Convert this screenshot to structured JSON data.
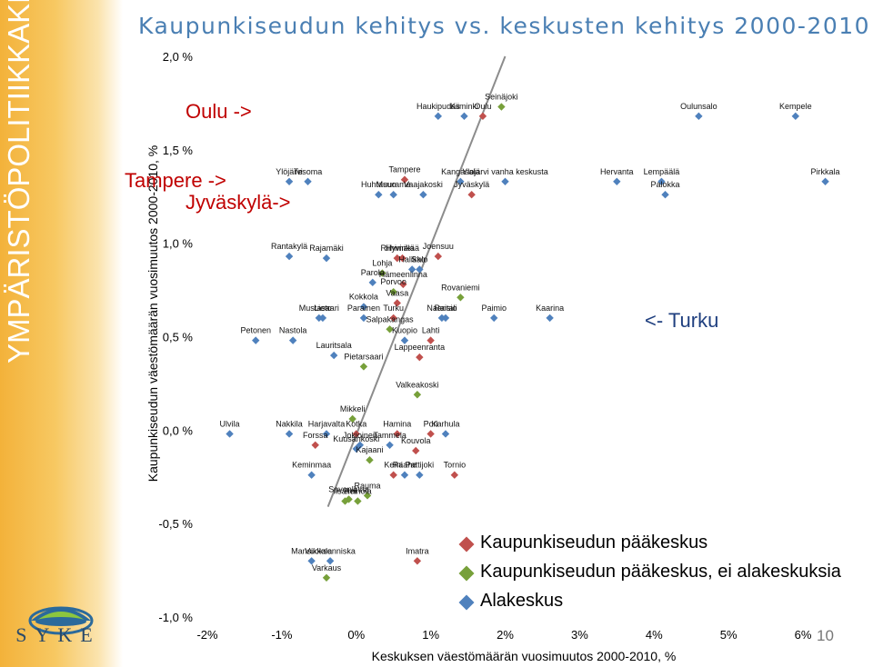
{
  "sidebar": {
    "vertical_title": "YMPÄRISTÖPOLITIIKKAKESKUS",
    "logo_text": "SYKE"
  },
  "header": {
    "title": "Kaupunkiseudun kehitys vs. keskusten kehitys 2000-2010"
  },
  "annotations": {
    "oulu": "Oulu ->",
    "tampere": "Tampere ->",
    "jyvaskyla": "Jyväskylä->",
    "turku": "<- Turku"
  },
  "page_number": "10",
  "colors": {
    "red": "#c0504d",
    "green": "#77a03a",
    "blue": "#4f81bd",
    "trend": "#8c8c8c",
    "annotation_red": "#c00000",
    "annotation_blue": "#1f3f7f"
  },
  "legend": [
    {
      "name": "Kaupunkiseudun pääkeskus",
      "color": "#c0504d"
    },
    {
      "name": "Kaupunkiseudun pääkeskus, ei alakeskuksia",
      "color": "#77a03a"
    },
    {
      "name": "Alakeskus",
      "color": "#4f81bd"
    }
  ],
  "chart_data": {
    "type": "scatter",
    "title": "",
    "xlabel": "Keskuksen väestömäärän vuosimuutos 2000-2010, %",
    "ylabel": "Kaupunkiseudun väestömäärän vuosimuutos 2000-2010, %",
    "xlim": [
      -2,
      6
    ],
    "ylim": [
      -1,
      2
    ],
    "x_ticks": [
      "-2%",
      "-1%",
      "0%",
      "1%",
      "2%",
      "3%",
      "4%",
      "5%",
      "6%"
    ],
    "y_ticks": [
      "-1,0 %",
      "-0,5 %",
      "0,0 %",
      "0,5 %",
      "1,0 %",
      "1,5 %",
      "2,0 %"
    ],
    "grid": false,
    "legend_position": "bottom-right",
    "trendline": {
      "x": [
        -0.38,
        2.0
      ],
      "y": [
        -0.41,
        2.0
      ]
    },
    "series": [
      {
        "name": "Kaupunkiseudun pääkeskus",
        "points": [
          {
            "label": "Oulu",
            "x": 1.7,
            "y": 1.68
          },
          {
            "label": "Tampere",
            "x": 0.65,
            "y": 1.34
          },
          {
            "label": "Jyväskylä",
            "x": 1.55,
            "y": 1.26
          },
          {
            "label": "Riihimäki",
            "x": 0.55,
            "y": 0.92
          },
          {
            "label": "Hyvinkää",
            "x": 0.62,
            "y": 0.92
          },
          {
            "label": "Joensuu",
            "x": 1.1,
            "y": 0.93
          },
          {
            "label": "Hämeenlinna",
            "x": 0.63,
            "y": 0.78
          },
          {
            "label": "Vaasa",
            "x": 0.55,
            "y": 0.68
          },
          {
            "label": "Turku",
            "x": 0.5,
            "y": 0.6
          },
          {
            "label": "Lahti",
            "x": 1.0,
            "y": 0.48
          },
          {
            "label": "Lappeenranta",
            "x": 0.85,
            "y": 0.39
          },
          {
            "label": "Kotka",
            "x": 0.0,
            "y": -0.02
          },
          {
            "label": "Hamina",
            "x": 0.55,
            "y": -0.02
          },
          {
            "label": "Pori",
            "x": 1.0,
            "y": -0.02
          },
          {
            "label": "Forssa",
            "x": -0.55,
            "y": -0.08
          },
          {
            "label": "Kouvola",
            "x": 0.8,
            "y": -0.11
          },
          {
            "label": "Kemi",
            "x": 0.5,
            "y": -0.24
          },
          {
            "label": "Tornio",
            "x": 1.32,
            "y": -0.24
          },
          {
            "label": "Imatra",
            "x": 0.82,
            "y": -0.7
          }
        ]
      },
      {
        "name": "Kaupunkiseudun pääkeskus, ei alakeskuksia",
        "points": [
          {
            "label": "Seinäjoki",
            "x": 1.95,
            "y": 1.73
          },
          {
            "label": "Lohja",
            "x": 0.35,
            "y": 0.84
          },
          {
            "label": "Porvoo",
            "x": 0.5,
            "y": 0.74
          },
          {
            "label": "Rovaniemi",
            "x": 1.4,
            "y": 0.71
          },
          {
            "label": "Salpakangas",
            "x": 0.45,
            "y": 0.54
          },
          {
            "label": "Pietarsaari",
            "x": 0.1,
            "y": 0.34
          },
          {
            "label": "Valkeakoski",
            "x": 0.82,
            "y": 0.19
          },
          {
            "label": "Mikkeli",
            "x": -0.05,
            "y": 0.06
          },
          {
            "label": "Kajaani",
            "x": 0.18,
            "y": -0.16
          },
          {
            "label": "Savonlinna",
            "x": -0.1,
            "y": -0.37
          },
          {
            "label": "Rauma",
            "x": 0.15,
            "y": -0.35
          },
          {
            "label": "Iisalmi",
            "x": -0.15,
            "y": -0.38
          },
          {
            "label": "Heinola",
            "x": 0.02,
            "y": -0.38
          },
          {
            "label": "Varkaus",
            "x": -0.4,
            "y": -0.79
          }
        ]
      },
      {
        "name": "Alakeskus",
        "points": [
          {
            "label": "Haukipudas",
            "x": 1.1,
            "y": 1.68
          },
          {
            "label": "Kiiminki",
            "x": 1.45,
            "y": 1.68
          },
          {
            "label": "Oulunsalo",
            "x": 4.6,
            "y": 1.68
          },
          {
            "label": "Kempele",
            "x": 5.9,
            "y": 1.68
          },
          {
            "label": "Ylöjärvi",
            "x": -0.9,
            "y": 1.33
          },
          {
            "label": "Tesoma",
            "x": -0.65,
            "y": 1.33
          },
          {
            "label": "Kangasala",
            "x": 1.4,
            "y": 1.33
          },
          {
            "label": "Ylojärvi vanha keskusta",
            "x": 2.0,
            "y": 1.33
          },
          {
            "label": "Hervanta",
            "x": 3.5,
            "y": 1.33
          },
          {
            "label": "Lempäälä",
            "x": 4.1,
            "y": 1.33
          },
          {
            "label": "Pirkkala",
            "x": 6.3,
            "y": 1.33
          },
          {
            "label": "Huhtasuo",
            "x": 0.3,
            "y": 1.26
          },
          {
            "label": "Muurame",
            "x": 0.5,
            "y": 1.26
          },
          {
            "label": "Vaajakoski",
            "x": 0.9,
            "y": 1.26
          },
          {
            "label": "Palokka",
            "x": 4.15,
            "y": 1.26
          },
          {
            "label": "Rantakylä",
            "x": -0.9,
            "y": 0.93
          },
          {
            "label": "Rajamäki",
            "x": -0.4,
            "y": 0.92
          },
          {
            "label": "Halikko",
            "x": 0.75,
            "y": 0.86
          },
          {
            "label": "Salo",
            "x": 0.85,
            "y": 0.86
          },
          {
            "label": "Parola",
            "x": 0.22,
            "y": 0.79
          },
          {
            "label": "Kokkola",
            "x": 0.1,
            "y": 0.66
          },
          {
            "label": "Mustasaari",
            "x": -0.5,
            "y": 0.6
          },
          {
            "label": "Lieto",
            "x": -0.45,
            "y": 0.6
          },
          {
            "label": "Parainen",
            "x": 0.1,
            "y": 0.6
          },
          {
            "label": "Naantali",
            "x": 1.15,
            "y": 0.6
          },
          {
            "label": "Raisio",
            "x": 1.2,
            "y": 0.6
          },
          {
            "label": "Paimio",
            "x": 1.85,
            "y": 0.6
          },
          {
            "label": "Kaarina",
            "x": 2.6,
            "y": 0.6
          },
          {
            "label": "Nastola",
            "x": -0.85,
            "y": 0.48
          },
          {
            "label": "Petonen",
            "x": -1.35,
            "y": 0.48
          },
          {
            "label": "Kuopio",
            "x": 0.65,
            "y": 0.48
          },
          {
            "label": "Lauritsala",
            "x": -0.3,
            "y": 0.4
          },
          {
            "label": "Ulvila",
            "x": -1.7,
            "y": -0.02
          },
          {
            "label": "Nakkila",
            "x": -0.9,
            "y": -0.02
          },
          {
            "label": "Harjavalta",
            "x": -0.4,
            "y": -0.02
          },
          {
            "label": "Karhula",
            "x": 1.2,
            "y": -0.02
          },
          {
            "label": "Jokioinen",
            "x": 0.05,
            "y": -0.08
          },
          {
            "label": "Tammela",
            "x": 0.45,
            "y": -0.08
          },
          {
            "label": "Kuusankoski",
            "x": 0.0,
            "y": -0.1
          },
          {
            "label": "Keminmaa",
            "x": -0.6,
            "y": -0.24
          },
          {
            "label": "Raahe",
            "x": 0.65,
            "y": -0.24
          },
          {
            "label": "Pattijoki",
            "x": 0.85,
            "y": -0.24
          },
          {
            "label": "Mansikkala",
            "x": -0.6,
            "y": -0.7
          },
          {
            "label": "Vuoksenniska",
            "x": -0.35,
            "y": -0.7
          }
        ]
      }
    ]
  }
}
